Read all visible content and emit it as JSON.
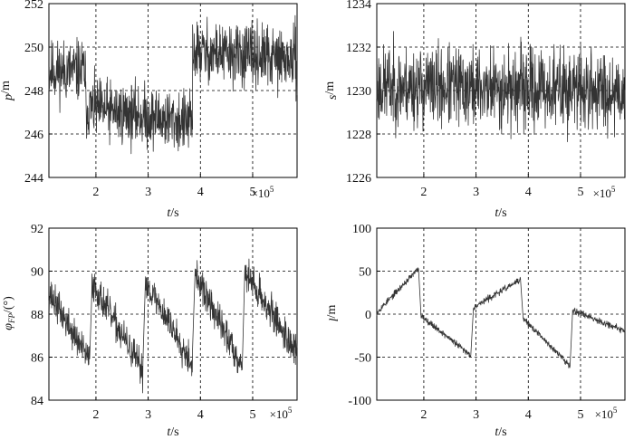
{
  "figure": {
    "x_exponent_label": "×10",
    "x_exponent_power": "5"
  },
  "chart_data": [
    {
      "type": "line",
      "ylabel_main": "p",
      "ylabel_sub": "",
      "ylabel_unit": "/m",
      "xlabel_main": "t",
      "xlabel_unit": "/s",
      "xlim": [
        1.1,
        5.85
      ],
      "ylim": [
        244,
        252
      ],
      "xticks": [
        2,
        3,
        4,
        5
      ],
      "yticks": [
        244,
        246,
        248,
        250,
        252
      ],
      "grid": true,
      "color": "#333333",
      "noise": 1.0,
      "seed": 11,
      "series": [
        {
          "x": [
            1.1,
            1.8
          ],
          "y": [
            248.9,
            248.9
          ]
        },
        {
          "x": [
            1.8,
            3.85
          ],
          "y": [
            247.2,
            246.5
          ]
        },
        {
          "x": [
            3.85,
            5.85
          ],
          "y": [
            249.8,
            249.4
          ]
        }
      ]
    },
    {
      "type": "line",
      "ylabel_main": "s",
      "ylabel_sub": "",
      "ylabel_unit": "/m",
      "xlabel_main": "t",
      "xlabel_unit": "/s",
      "xlim": [
        1.1,
        5.85
      ],
      "ylim": [
        1226,
        1234
      ],
      "xticks": [
        2,
        3,
        4,
        5
      ],
      "yticks": [
        1226,
        1228,
        1230,
        1232,
        1234
      ],
      "grid": true,
      "color": "#333333",
      "noise": 1.3,
      "seed": 23,
      "series": [
        {
          "x": [
            1.1,
            5.85
          ],
          "y": [
            1230.2,
            1230.0
          ]
        }
      ]
    },
    {
      "type": "line",
      "ylabel_main": "φ",
      "ylabel_sub": "FP",
      "ylabel_unit": "/(°)",
      "xlabel_main": "t",
      "xlabel_unit": "/s",
      "xlim": [
        1.1,
        5.85
      ],
      "ylim": [
        84,
        92
      ],
      "xticks": [
        2,
        3,
        4,
        5
      ],
      "yticks": [
        84,
        86,
        88,
        90,
        92
      ],
      "grid": true,
      "color": "#333333",
      "noise": 0.55,
      "seed": 37,
      "series": [
        {
          "x": [
            1.1,
            1.88
          ],
          "y": [
            89.0,
            85.8
          ]
        },
        {
          "x": [
            1.92,
            2.9
          ],
          "y": [
            89.5,
            85.3
          ]
        },
        {
          "x": [
            2.95,
            3.85
          ],
          "y": [
            89.5,
            85.7
          ]
        },
        {
          "x": [
            3.9,
            4.8
          ],
          "y": [
            89.8,
            85.6
          ]
        },
        {
          "x": [
            4.85,
            5.85
          ],
          "y": [
            90.0,
            86.2
          ]
        }
      ]
    },
    {
      "type": "line",
      "ylabel_main": "l",
      "ylabel_sub": "",
      "ylabel_unit": "/m",
      "xlabel_main": "t",
      "xlabel_unit": "/s",
      "xlim": [
        1.1,
        5.85
      ],
      "ylim": [
        -100,
        100
      ],
      "xticks": [
        2,
        3,
        4,
        5
      ],
      "yticks": [
        -100,
        -50,
        0,
        50,
        100
      ],
      "grid": true,
      "color": "#333333",
      "noise": 2.5,
      "seed": 53,
      "series": [
        {
          "x": [
            1.1,
            1.9
          ],
          "y": [
            2,
            53
          ]
        },
        {
          "x": [
            1.95,
            2.9
          ],
          "y": [
            -2,
            -48
          ]
        },
        {
          "x": [
            2.95,
            3.85
          ],
          "y": [
            8,
            40
          ]
        },
        {
          "x": [
            3.9,
            4.8
          ],
          "y": [
            -5,
            -60
          ]
        },
        {
          "x": [
            4.85,
            5.85
          ],
          "y": [
            5,
            -20
          ]
        }
      ]
    }
  ]
}
